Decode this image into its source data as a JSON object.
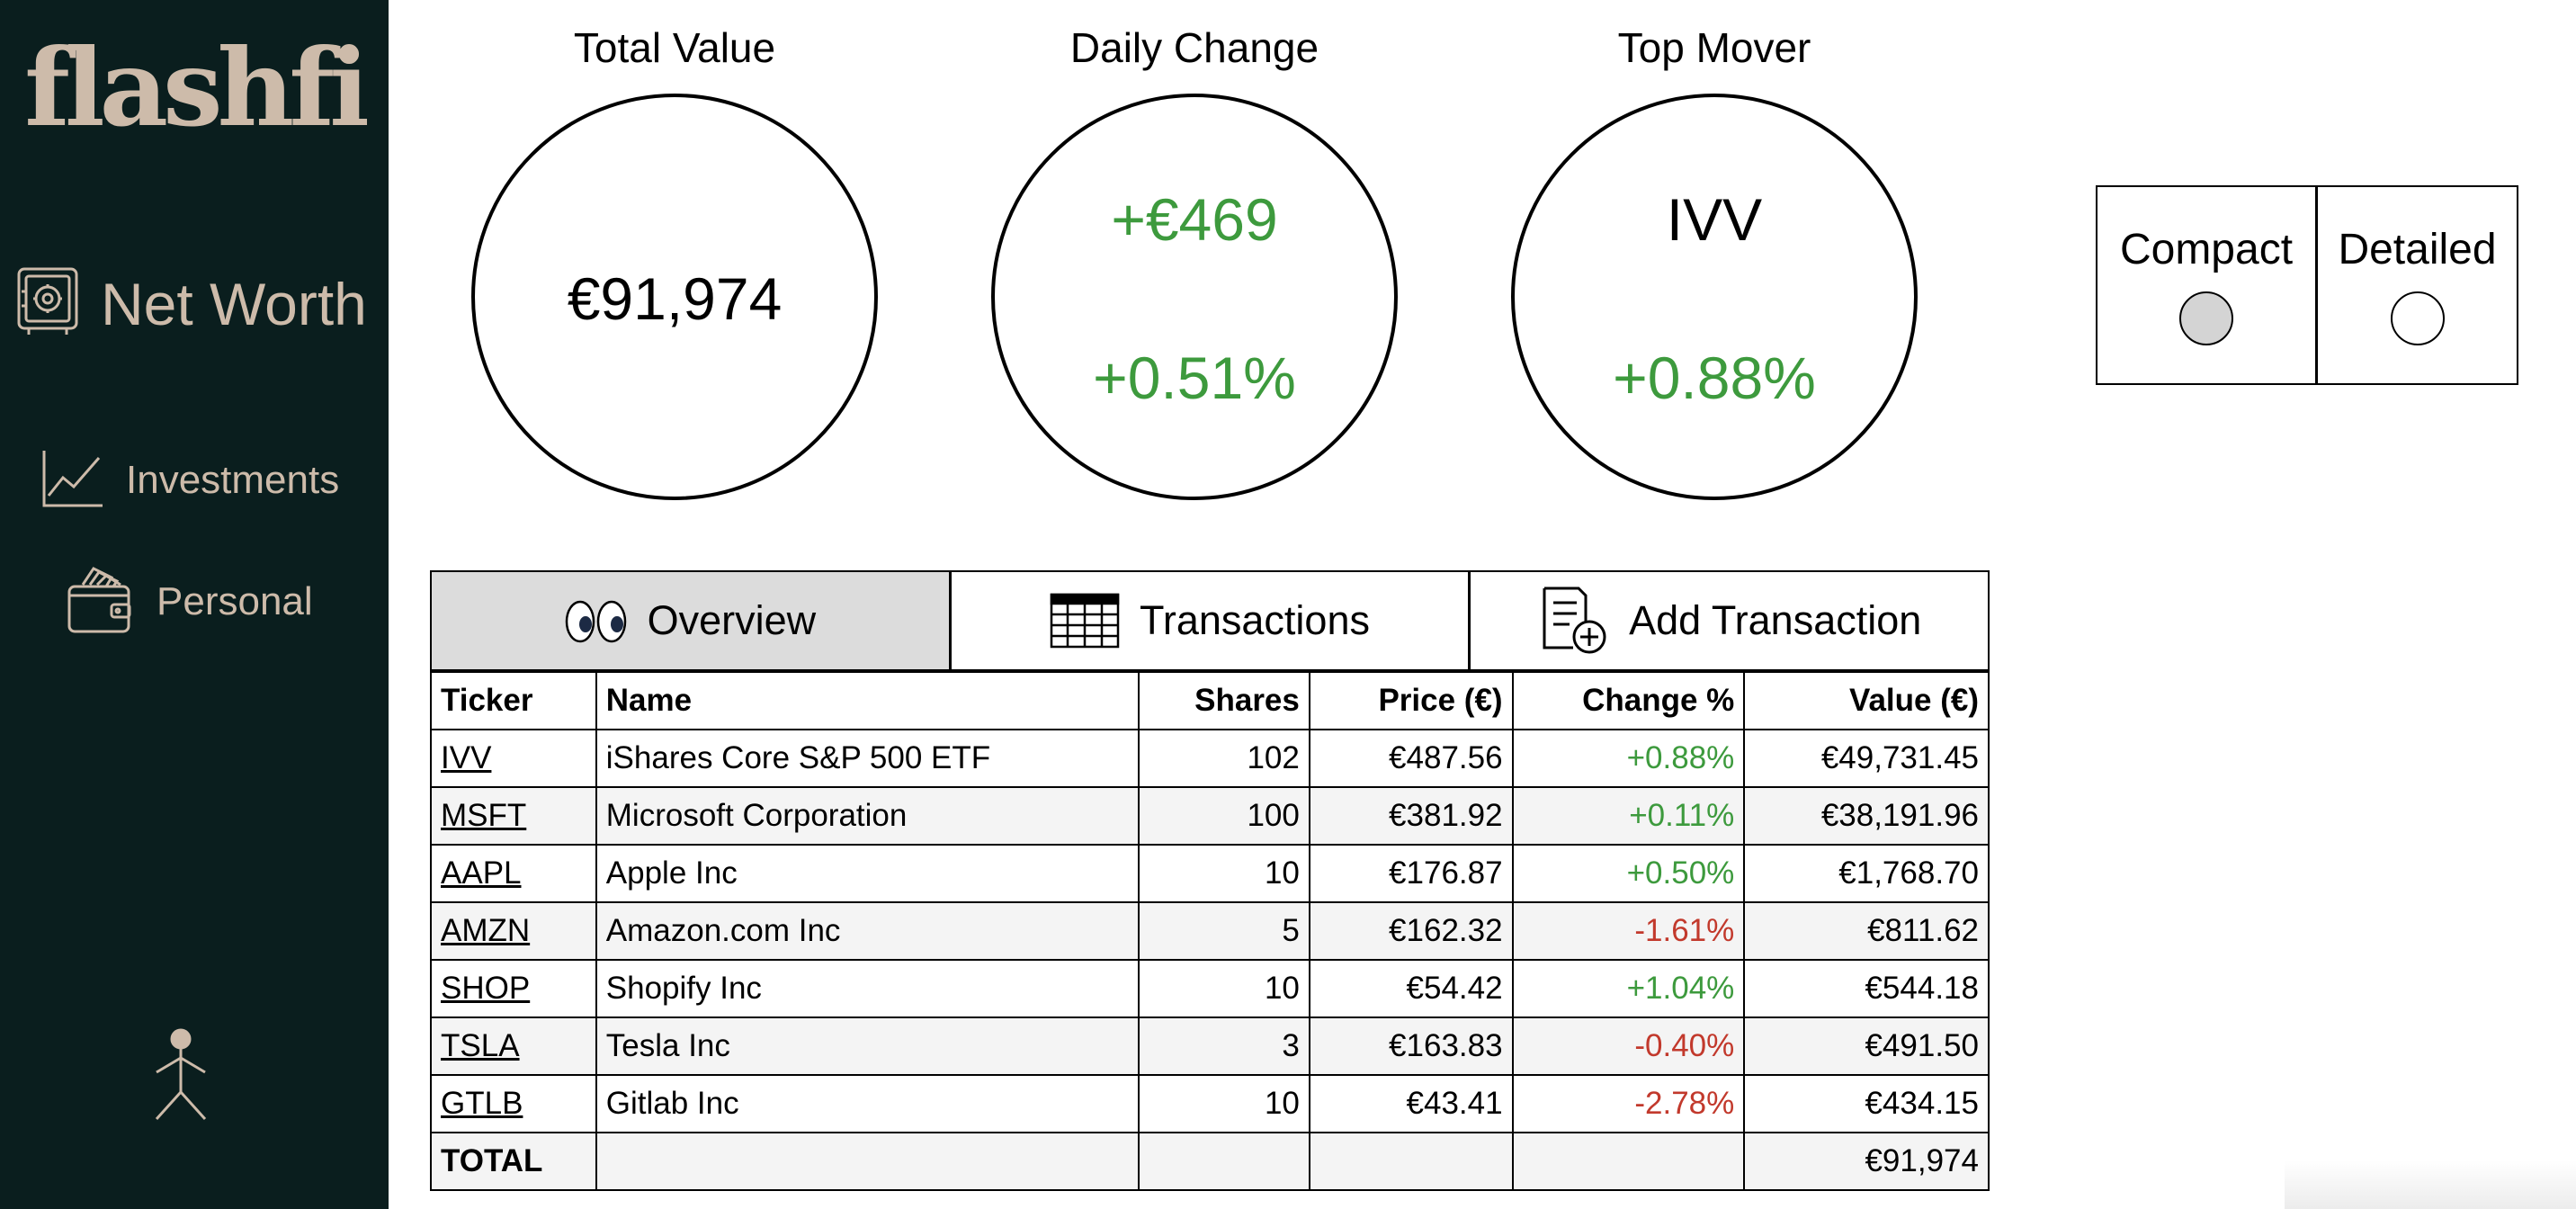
{
  "sidebar": {
    "logo": "flashfi",
    "items": [
      {
        "label": "Net Worth",
        "icon": "safe-icon"
      },
      {
        "label": "Investments",
        "icon": "line-chart-icon"
      },
      {
        "label": "Personal",
        "icon": "wallet-icon"
      }
    ],
    "user_icon": "user-icon"
  },
  "summary": {
    "total_value": {
      "title": "Total Value",
      "value": "€91,974"
    },
    "daily_change": {
      "title": "Daily Change",
      "amount": "+€469",
      "percent": "+0.51%"
    },
    "top_mover": {
      "title": "Top Mover",
      "ticker": "IVV",
      "percent": "+0.88%"
    }
  },
  "view_toggle": {
    "options": [
      {
        "label": "Compact",
        "selected": true
      },
      {
        "label": "Detailed",
        "selected": false
      }
    ]
  },
  "tabs": [
    {
      "label": "Overview",
      "icon": "eyes-icon",
      "active": true
    },
    {
      "label": "Transactions",
      "icon": "table-icon",
      "active": false
    },
    {
      "label": "Add Transaction",
      "icon": "add-document-icon",
      "active": false
    }
  ],
  "table": {
    "columns": [
      "Ticker",
      "Name",
      "Shares",
      "Price (€)",
      "Change %",
      "Value (€)"
    ],
    "rows": [
      {
        "ticker": "IVV",
        "name": "iShares Core S&P 500 ETF",
        "shares": "102",
        "price": "€487.56",
        "change": "+0.88%",
        "value": "€49,731.45"
      },
      {
        "ticker": "MSFT",
        "name": "Microsoft Corporation",
        "shares": "100",
        "price": "€381.92",
        "change": "+0.11%",
        "value": "€38,191.96"
      },
      {
        "ticker": "AAPL",
        "name": "Apple Inc",
        "shares": "10",
        "price": "€176.87",
        "change": "+0.50%",
        "value": "€1,768.70"
      },
      {
        "ticker": "AMZN",
        "name": "Amazon.com Inc",
        "shares": "5",
        "price": "€162.32",
        "change": "-1.61%",
        "value": "€811.62"
      },
      {
        "ticker": "SHOP",
        "name": "Shopify Inc",
        "shares": "10",
        "price": "€54.42",
        "change": "+1.04%",
        "value": "€544.18"
      },
      {
        "ticker": "TSLA",
        "name": "Tesla Inc",
        "shares": "3",
        "price": "€163.83",
        "change": "-0.40%",
        "value": "€491.50"
      },
      {
        "ticker": "GTLB",
        "name": "Gitlab Inc",
        "shares": "10",
        "price": "€43.41",
        "change": "-2.78%",
        "value": "€434.15"
      }
    ],
    "total": {
      "label": "TOTAL",
      "value": "€91,974"
    }
  },
  "colors": {
    "sidebar_bg": "#0a1e1e",
    "sidebar_text": "#cdbbaa",
    "positive": "#3d9a3d",
    "negative": "#c2392c",
    "active_tab": "#dcdcdc"
  }
}
